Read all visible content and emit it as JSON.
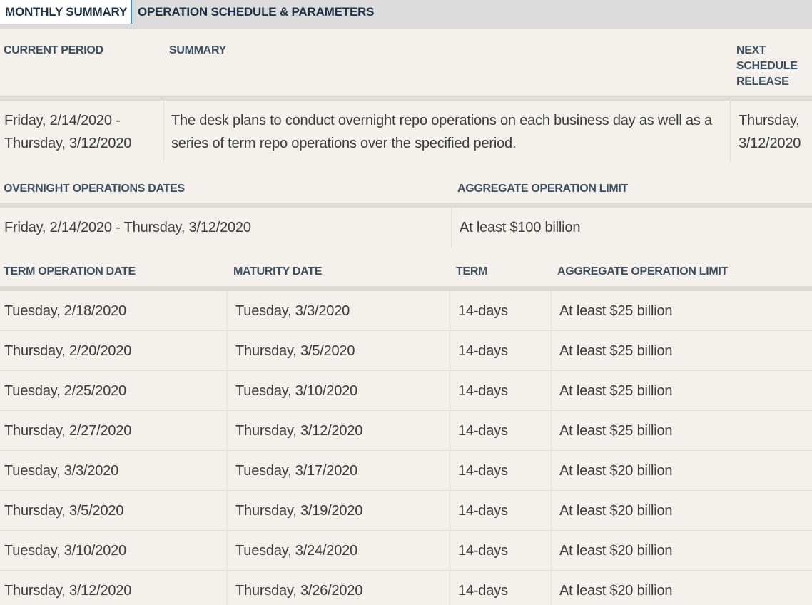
{
  "tabs": [
    {
      "label": "MONTHLY SUMMARY",
      "active": true
    },
    {
      "label": "OPERATION SCHEDULE & PARAMETERS",
      "active": false
    }
  ],
  "summary": {
    "headers": {
      "current_period": "CURRENT PERIOD",
      "summary": "SUMMARY",
      "next_release": "NEXT SCHEDULE RELEASE"
    },
    "current_period": "Friday, 2/14/2020 - Thursday, 3/12/2020",
    "summary_text": "The desk plans to conduct overnight repo operations on each business day as well as a series of term repo operations over the specified period.",
    "next_release": "Thursday, 3/12/2020"
  },
  "overnight": {
    "headers": {
      "dates": "OVERNIGHT OPERATIONS DATES",
      "limit": "AGGREGATE OPERATION LIMIT"
    },
    "dates": "Friday, 2/14/2020 - Thursday, 3/12/2020",
    "limit": "At least $100 billion"
  },
  "term": {
    "headers": {
      "date": "TERM OPERATION DATE",
      "maturity": "MATURITY DATE",
      "term": "TERM",
      "limit": "AGGREGATE OPERATION LIMIT"
    },
    "rows": [
      {
        "date": "Tuesday, 2/18/2020",
        "maturity": "Tuesday, 3/3/2020",
        "term": "14-days",
        "limit": "At least $25 billion"
      },
      {
        "date": "Thursday, 2/20/2020",
        "maturity": "Thursday, 3/5/2020",
        "term": "14-days",
        "limit": "At least $25 billion"
      },
      {
        "date": "Tuesday, 2/25/2020",
        "maturity": "Tuesday, 3/10/2020",
        "term": "14-days",
        "limit": "At least $25 billion"
      },
      {
        "date": "Thursday, 2/27/2020",
        "maturity": "Thursday, 3/12/2020",
        "term": "14-days",
        "limit": "At least $25 billion"
      },
      {
        "date": "Tuesday, 3/3/2020",
        "maturity": "Tuesday, 3/17/2020",
        "term": "14-days",
        "limit": "At least $20 billion"
      },
      {
        "date": "Thursday, 3/5/2020",
        "maturity": "Thursday, 3/19/2020",
        "term": "14-days",
        "limit": "At least $20 billion"
      },
      {
        "date": "Tuesday, 3/10/2020",
        "maturity": "Tuesday, 3/24/2020",
        "term": "14-days",
        "limit": "At least $20 billion"
      },
      {
        "date": "Thursday, 3/12/2020",
        "maturity": "Thursday, 3/26/2020",
        "term": "14-days",
        "limit": "At least $20 billion"
      }
    ]
  }
}
